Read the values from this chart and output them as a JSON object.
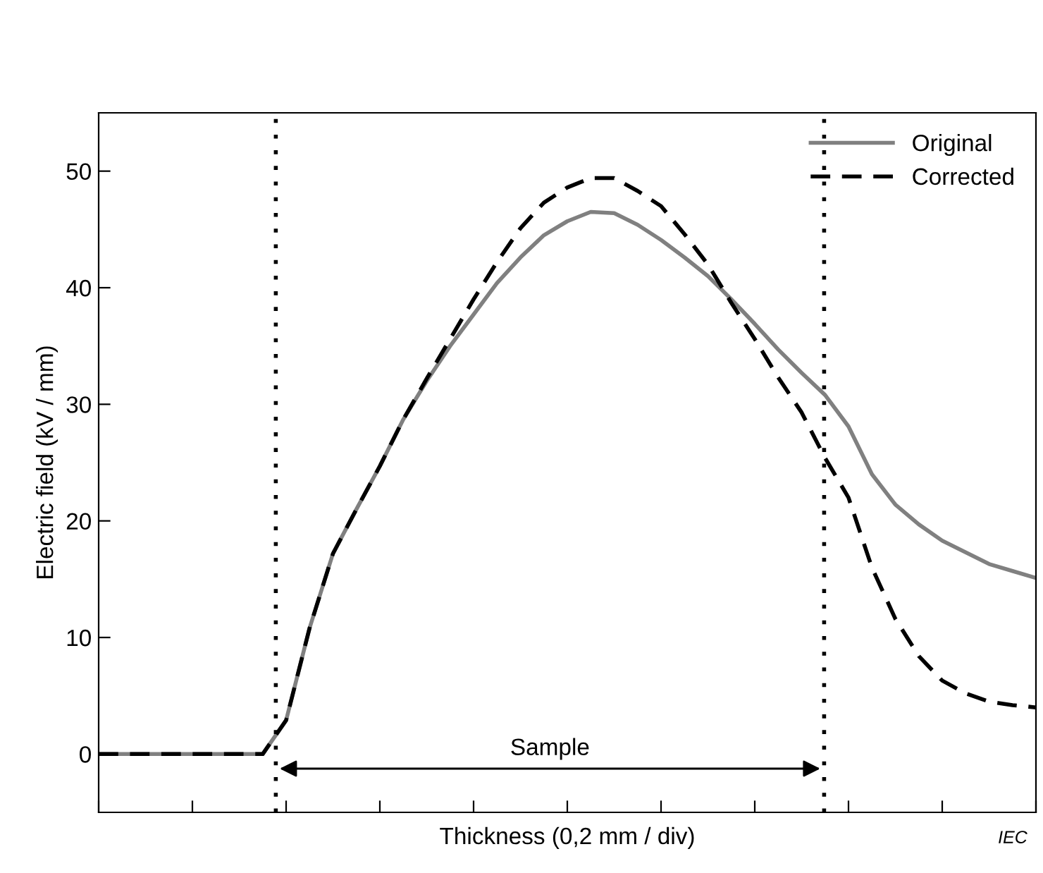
{
  "chart_data": {
    "type": "line",
    "xlabel": "Thickness (0,2 mm / div)",
    "ylabel": "Electric field (kV / mm)",
    "categories": [
      null,
      null,
      null,
      null,
      null,
      null,
      null,
      null,
      null,
      null,
      null,
      null,
      null,
      null,
      null,
      null,
      null,
      null,
      null,
      null,
      null,
      null,
      null,
      null,
      null,
      null,
      null,
      null,
      null,
      null,
      null,
      null,
      null,
      null,
      null,
      null,
      null,
      null,
      null,
      null,
      null
    ],
    "ylim": [
      -5,
      55
    ],
    "yticks": [
      0,
      10,
      20,
      30,
      40,
      50
    ],
    "series": [
      {
        "name": "Original",
        "color": "#808080",
        "line_style": "solid",
        "values": [
          0,
          0,
          0,
          0,
          0,
          0,
          0,
          0,
          2.9,
          10.8,
          17.2,
          21,
          24.7,
          28.7,
          32,
          35,
          37.7,
          40.4,
          42.6,
          44.5,
          45.7,
          46.5,
          46.4,
          45.4,
          44.1,
          42.6,
          41,
          39,
          36.9,
          34.7,
          32.7,
          30.8,
          28.1,
          24,
          21.4,
          19.7,
          18.3,
          17.3,
          16.3,
          15.7,
          15.1
        ]
      },
      {
        "name": "Corrected",
        "color": "#000000",
        "line_style": "dashed",
        "values": [
          0,
          0,
          0,
          0,
          0,
          0,
          0,
          0,
          2.9,
          10.8,
          17.2,
          21,
          24.7,
          28.7,
          32.2,
          35.6,
          39,
          42.2,
          45.1,
          47.3,
          48.6,
          49.4,
          49.4,
          48.3,
          47,
          44.6,
          42,
          38.7,
          35.6,
          32.3,
          29.3,
          25.4,
          22,
          16,
          11.6,
          8.4,
          6.3,
          5.2,
          4.5,
          4.2,
          4.0
        ]
      }
    ],
    "annotations": [
      "Sample",
      "IEC"
    ],
    "legend": "top right",
    "grid": false
  }
}
